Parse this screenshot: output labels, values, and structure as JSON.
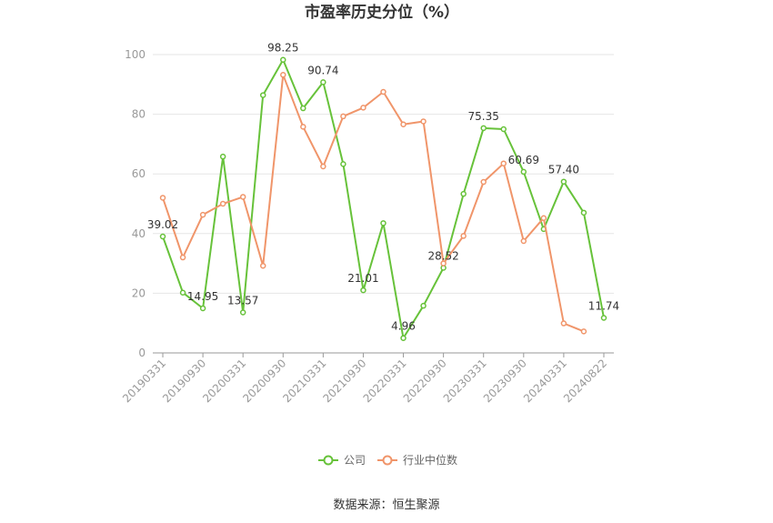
{
  "chart_data": {
    "type": "line",
    "title": "市盈率历史分位（%）",
    "x": [
      "20190331",
      "20190630",
      "20190930",
      "20191231",
      "20200331",
      "20200630",
      "20200930",
      "20201231",
      "20210331",
      "20210630",
      "20210930",
      "20211231",
      "20220331",
      "20220630",
      "20220930",
      "20221231",
      "20230331",
      "20230630",
      "20230930",
      "20231231",
      "20240331",
      "20240630",
      "20240822"
    ],
    "x_tick_labels": [
      "20190331",
      "20190930",
      "20200331",
      "20200930",
      "20210331",
      "20210930",
      "20220331",
      "20220930",
      "20230331",
      "20230930",
      "20240331",
      "20240822"
    ],
    "ylim": [
      0,
      100
    ],
    "y_ticks": [
      0,
      20,
      40,
      60,
      80,
      100
    ],
    "grid": true,
    "legend_position": "bottom",
    "series": [
      {
        "name": "公司",
        "color": "#67C23A",
        "values": [
          39.02,
          20.2,
          14.95,
          65.8,
          13.57,
          86.4,
          98.25,
          82.0,
          90.74,
          63.3,
          21.01,
          43.5,
          4.96,
          15.8,
          28.52,
          53.3,
          75.35,
          75.0,
          60.69,
          41.5,
          57.4,
          47.0,
          11.74
        ],
        "labels": {
          "0": "39.02",
          "2": "14.95",
          "4": "13.57",
          "6": "98.25",
          "8": "90.74",
          "10": "21.01",
          "12": "4.96",
          "14": "28.52",
          "16": "75.35",
          "18": "60.69",
          "20": "57.40",
          "22": "11.74"
        }
      },
      {
        "name": "行业中位数",
        "color": "#F0956A",
        "values": [
          52.0,
          32.0,
          46.3,
          50.0,
          52.3,
          29.2,
          93.2,
          75.8,
          62.5,
          79.3,
          82.2,
          87.5,
          76.6,
          77.6,
          30.0,
          39.2,
          57.3,
          63.5,
          37.5,
          45.2,
          9.9,
          7.2,
          null
        ]
      }
    ]
  },
  "footer": {
    "source": "数据来源：恒生聚源"
  }
}
